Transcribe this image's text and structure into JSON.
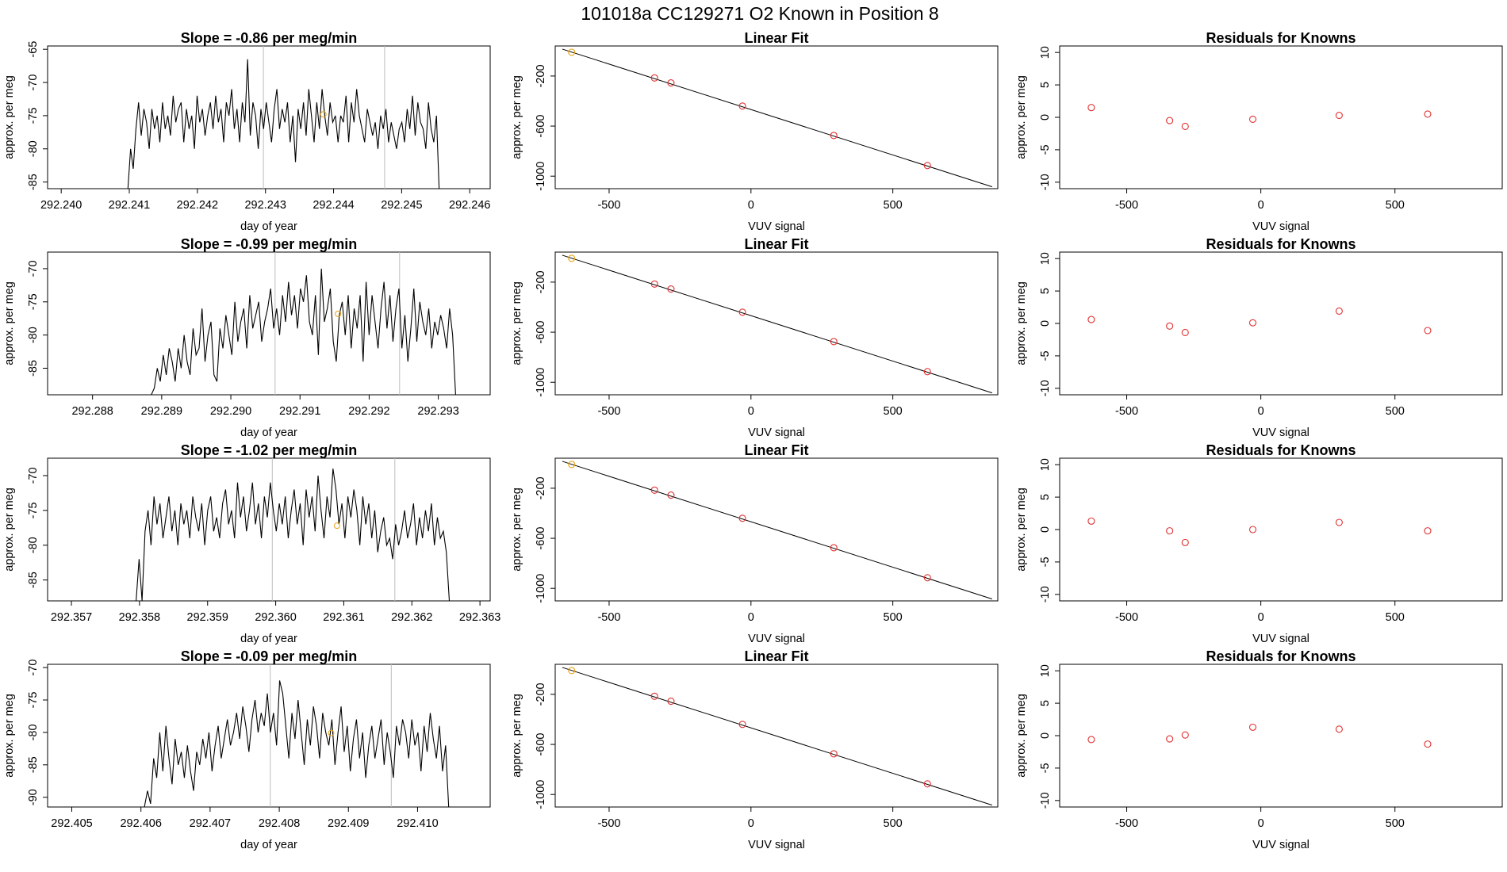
{
  "figure_title": "101018a      CC129271    O2 Known in Position  8",
  "colors": {
    "line": "#000000",
    "vline": "#bdbdbd",
    "known": "#e8a317",
    "resid": "#e03030"
  },
  "chart_data": [
    {
      "type": "line",
      "title": "Slope =  -0.86  per meg/min",
      "xlabel": "day of year",
      "ylabel": "approx. per meg",
      "xlim": [
        292.2398,
        292.2463
      ],
      "ylim": [
        -86,
        -64.5
      ],
      "xticks": [
        "292.240",
        "292.241",
        "292.242",
        "292.243",
        "292.244",
        "292.245",
        "292.246"
      ],
      "yticks": [
        "-65",
        "-70",
        "-75",
        "-80",
        "-85"
      ],
      "vlines": [
        292.24297,
        292.24475
      ],
      "known_point": [
        292.24385,
        -74.8
      ],
      "x_start": 292.24098,
      "x_end": 292.24555,
      "values": [
        -86,
        -80,
        -83,
        -77,
        -73,
        -78,
        -74,
        -76,
        -80,
        -74,
        -77,
        -75,
        -79,
        -73,
        -77,
        -75,
        -78,
        -72,
        -76,
        -74,
        -73,
        -79,
        -74,
        -77,
        -75,
        -80,
        -72,
        -76,
        -74,
        -78,
        -75,
        -73,
        -77,
        -72,
        -76,
        -74,
        -79,
        -73,
        -75,
        -71,
        -77,
        -74,
        -79,
        -73,
        -76,
        -66.5,
        -78,
        -73,
        -75,
        -80,
        -74,
        -77,
        -73,
        -76,
        -79,
        -74,
        -71,
        -77,
        -74,
        -76,
        -73,
        -79,
        -75,
        -82,
        -74,
        -77,
        -73,
        -78,
        -71,
        -75,
        -79,
        -73,
        -77,
        -71,
        -75,
        -78,
        -73,
        -76,
        -75,
        -79,
        -75,
        -76,
        -72,
        -79,
        -73,
        -76,
        -71,
        -75,
        -77,
        -79,
        -74,
        -76,
        -78,
        -76,
        -80,
        -75,
        -77,
        -74,
        -79,
        -76,
        -78,
        -80,
        -77,
        -76,
        -79,
        -74,
        -77,
        -72,
        -78,
        -73,
        -76,
        -77,
        -80,
        -73,
        -77,
        -79,
        -75,
        -86
      ],
      "base": -86
    },
    {
      "type": "scatter",
      "title": "Linear Fit",
      "xlabel": "VUV signal",
      "ylabel": "approx. per meg",
      "xlim": [
        -690,
        870
      ],
      "ylim": [
        -1100,
        40
      ],
      "xticks": [
        -500,
        0,
        500
      ],
      "yticks": [
        -200,
        -600,
        -1000
      ],
      "line": [
        [
          -665,
          15
        ],
        [
          850,
          -1085
        ]
      ],
      "known": [
        [
          -632,
          -10
        ]
      ],
      "points": [
        [
          -340,
          -215
        ],
        [
          -282,
          -255
        ],
        [
          -30,
          -440
        ],
        [
          292,
          -675
        ],
        [
          622,
          -915
        ]
      ]
    },
    {
      "type": "scatter",
      "title": "Residuals for Knowns",
      "xlabel": "VUV signal",
      "ylabel": "approx. per meg",
      "xlim": [
        -750,
        900
      ],
      "ylim": [
        -11,
        11
      ],
      "xticks": [
        -500,
        0,
        500
      ],
      "yticks": [
        10,
        5,
        0,
        -5,
        -10
      ],
      "points": [
        [
          -632,
          1.5
        ],
        [
          -340,
          -0.5
        ],
        [
          -282,
          -1.4
        ],
        [
          -30,
          -0.3
        ],
        [
          292,
          0.3
        ],
        [
          622,
          0.5
        ]
      ]
    },
    {
      "type": "line",
      "title": "Slope =  -0.99  per meg/min",
      "xlabel": "day of year",
      "ylabel": "approx. per meg",
      "xlim": [
        292.28735,
        292.29375
      ],
      "ylim": [
        -89,
        -67.5
      ],
      "xticks": [
        "292.288",
        "292.289",
        "292.290",
        "292.291",
        "292.292",
        "292.293"
      ],
      "yticks": [
        "-70",
        "-75",
        "-80",
        "-85"
      ],
      "vlines": [
        292.29064,
        292.29244
      ],
      "known_point": [
        292.29155,
        -76.8
      ],
      "x_start": 292.28885,
      "x_end": 292.29325,
      "values": [
        -89,
        -88,
        -85,
        -87,
        -83,
        -86,
        -82,
        -84,
        -87,
        -82,
        -85,
        -80,
        -84,
        -86,
        -79,
        -83,
        -82,
        -76,
        -84,
        -80,
        -78,
        -86,
        -87,
        -79,
        -82,
        -77,
        -80,
        -83,
        -75,
        -81,
        -78,
        -76,
        -82,
        -74,
        -79,
        -77,
        -75,
        -81,
        -78,
        -76,
        -73,
        -79,
        -76,
        -80,
        -74,
        -78,
        -72,
        -77,
        -74,
        -79,
        -73,
        -75,
        -71,
        -78,
        -80,
        -74,
        -83,
        -70,
        -78,
        -76,
        -73,
        -81,
        -84,
        -77,
        -75,
        -80,
        -74,
        -82,
        -76,
        -79,
        -74,
        -84,
        -72,
        -80,
        -74,
        -78,
        -82,
        -76,
        -72,
        -79,
        -74,
        -81,
        -76,
        -73,
        -82,
        -77,
        -84,
        -79,
        -73,
        -81,
        -75,
        -78,
        -80,
        -76,
        -82,
        -78,
        -80,
        -77,
        -79,
        -82,
        -76,
        -80,
        -89
      ],
      "base": -89
    },
    {
      "type": "scatter",
      "title": "Linear Fit",
      "xlabel": "VUV signal",
      "ylabel": "approx. per meg",
      "xlim": [
        -690,
        870
      ],
      "ylim": [
        -1100,
        40
      ],
      "xticks": [
        -500,
        0,
        500
      ],
      "yticks": [
        -200,
        -600,
        -1000
      ],
      "line": [
        [
          -665,
          15
        ],
        [
          850,
          -1085
        ]
      ],
      "known": [
        [
          -632,
          -10
        ]
      ],
      "points": [
        [
          -340,
          -215
        ],
        [
          -282,
          -255
        ],
        [
          -30,
          -440
        ],
        [
          292,
          -675
        ],
        [
          622,
          -915
        ]
      ]
    },
    {
      "type": "scatter",
      "title": "Residuals for Knowns",
      "xlabel": "VUV signal",
      "ylabel": "approx. per meg",
      "xlim": [
        -750,
        900
      ],
      "ylim": [
        -11,
        11
      ],
      "xticks": [
        -500,
        0,
        500
      ],
      "yticks": [
        10,
        5,
        0,
        -5,
        -10
      ],
      "points": [
        [
          -632,
          0.6
        ],
        [
          -340,
          -0.4
        ],
        [
          -282,
          -1.4
        ],
        [
          -30,
          0.1
        ],
        [
          292,
          1.9
        ],
        [
          622,
          -1.1
        ]
      ]
    },
    {
      "type": "line",
      "title": "Slope =  -1.02  per meg/min",
      "xlabel": "day of year",
      "ylabel": "approx. per meg",
      "xlim": [
        292.35665,
        292.36315
      ],
      "ylim": [
        -88,
        -67.5
      ],
      "xticks": [
        "292.357",
        "292.358",
        "292.359",
        "292.360",
        "292.361",
        "292.362",
        "292.363"
      ],
      "yticks": [
        "-70",
        "-75",
        "-80",
        "-85"
      ],
      "vlines": [
        292.35995,
        292.36175
      ],
      "known_point": [
        292.3609,
        -77.2
      ],
      "x_start": 292.35795,
      "x_end": 292.36255,
      "values": [
        -88,
        -82,
        -88,
        -78,
        -75,
        -80,
        -73,
        -77,
        -74,
        -79,
        -76,
        -73,
        -78,
        -75,
        -80,
        -74,
        -77,
        -75,
        -79,
        -73,
        -76,
        -78,
        -74,
        -80,
        -75,
        -73,
        -78,
        -76,
        -79,
        -74,
        -72,
        -77,
        -75,
        -79,
        -71,
        -76,
        -73,
        -78,
        -75,
        -71,
        -77,
        -74,
        -79,
        -73,
        -76,
        -71,
        -75,
        -78,
        -74,
        -77,
        -73,
        -79,
        -75,
        -72,
        -77,
        -74,
        -80,
        -72,
        -76,
        -73,
        -78,
        -70,
        -75,
        -79,
        -73,
        -76,
        -69,
        -72,
        -77,
        -74,
        -79,
        -73,
        -76,
        -72,
        -75,
        -80,
        -73,
        -77,
        -74,
        -79,
        -75,
        -81,
        -78,
        -76,
        -80,
        -79,
        -82,
        -77,
        -80,
        -78,
        -75,
        -79,
        -77,
        -74,
        -80,
        -76,
        -79,
        -75,
        -78,
        -74,
        -80,
        -76,
        -79,
        -78,
        -81,
        -88
      ],
      "base": -88
    },
    {
      "type": "scatter",
      "title": "Linear Fit",
      "xlabel": "VUV signal",
      "ylabel": "approx. per meg",
      "xlim": [
        -690,
        870
      ],
      "ylim": [
        -1100,
        40
      ],
      "xticks": [
        -500,
        0,
        500
      ],
      "yticks": [
        -200,
        -600,
        -1000
      ],
      "line": [
        [
          -665,
          15
        ],
        [
          850,
          -1085
        ]
      ],
      "known": [
        [
          -632,
          -10
        ]
      ],
      "points": [
        [
          -340,
          -215
        ],
        [
          -282,
          -255
        ],
        [
          -30,
          -440
        ],
        [
          292,
          -675
        ],
        [
          622,
          -915
        ]
      ]
    },
    {
      "type": "scatter",
      "title": "Residuals for Knowns",
      "xlabel": "VUV signal",
      "ylabel": "approx. per meg",
      "xlim": [
        -750,
        900
      ],
      "ylim": [
        -11,
        11
      ],
      "xticks": [
        -500,
        0,
        500
      ],
      "yticks": [
        10,
        5,
        0,
        -5,
        -10
      ],
      "points": [
        [
          -632,
          1.3
        ],
        [
          -340,
          -0.2
        ],
        [
          -282,
          -2.0
        ],
        [
          -30,
          0.0
        ],
        [
          292,
          1.1
        ],
        [
          622,
          -0.2
        ]
      ]
    },
    {
      "type": "line",
      "title": "Slope =  -0.09  per meg/min",
      "xlabel": "day of year",
      "ylabel": "approx. per meg",
      "xlim": [
        292.40465,
        292.41105
      ],
      "ylim": [
        -91.5,
        -69.5
      ],
      "xticks": [
        "292.405",
        "292.406",
        "292.407",
        "292.408",
        "292.409",
        "292.410"
      ],
      "yticks": [
        "-70",
        "-75",
        "-80",
        "-85",
        "-90"
      ],
      "vlines": [
        292.40787,
        292.40962
      ],
      "known_point": [
        292.40875,
        -80.1
      ],
      "x_start": 292.40605,
      "x_end": 292.41045,
      "values": [
        -91.5,
        -89,
        -91,
        -84,
        -87,
        -80,
        -86,
        -79,
        -84,
        -88,
        -81,
        -85,
        -83,
        -87,
        -82,
        -86,
        -89,
        -83,
        -85,
        -81,
        -84,
        -80,
        -86,
        -82,
        -79,
        -84,
        -81,
        -78,
        -82,
        -80,
        -77,
        -81,
        -76,
        -79,
        -83,
        -78,
        -75,
        -80,
        -77,
        -79,
        -74,
        -80,
        -77,
        -82,
        -72,
        -74,
        -79,
        -84,
        -77,
        -81,
        -75,
        -80,
        -85,
        -78,
        -82,
        -76,
        -79,
        -84,
        -77,
        -80,
        -82,
        -78,
        -85,
        -80,
        -76,
        -83,
        -79,
        -86,
        -81,
        -78,
        -84,
        -80,
        -87,
        -82,
        -79,
        -84,
        -81,
        -78,
        -85,
        -80,
        -83,
        -87,
        -79,
        -82,
        -78,
        -80,
        -84,
        -78,
        -82,
        -80,
        -86,
        -79,
        -83,
        -77,
        -81,
        -84,
        -79,
        -86,
        -82,
        -91.5
      ],
      "base": -91.5
    },
    {
      "type": "scatter",
      "title": "Linear Fit",
      "xlabel": "VUV signal",
      "ylabel": "approx. per meg",
      "xlim": [
        -690,
        870
      ],
      "ylim": [
        -1100,
        40
      ],
      "xticks": [
        -500,
        0,
        500
      ],
      "yticks": [
        -200,
        -600,
        -1000
      ],
      "line": [
        [
          -665,
          15
        ],
        [
          850,
          -1085
        ]
      ],
      "known": [
        [
          -632,
          -10
        ]
      ],
      "points": [
        [
          -340,
          -215
        ],
        [
          -282,
          -255
        ],
        [
          -30,
          -440
        ],
        [
          292,
          -675
        ],
        [
          622,
          -915
        ]
      ]
    },
    {
      "type": "scatter",
      "title": "Residuals for Knowns",
      "xlabel": "VUV signal",
      "ylabel": "approx. per meg",
      "xlim": [
        -750,
        900
      ],
      "ylim": [
        -11,
        11
      ],
      "xticks": [
        -500,
        0,
        500
      ],
      "yticks": [
        10,
        5,
        0,
        -5,
        -10
      ],
      "points": [
        [
          -632,
          -0.6
        ],
        [
          -340,
          -0.5
        ],
        [
          -282,
          0.1
        ],
        [
          -30,
          1.3
        ],
        [
          292,
          1.0
        ],
        [
          622,
          -1.3
        ]
      ]
    }
  ]
}
